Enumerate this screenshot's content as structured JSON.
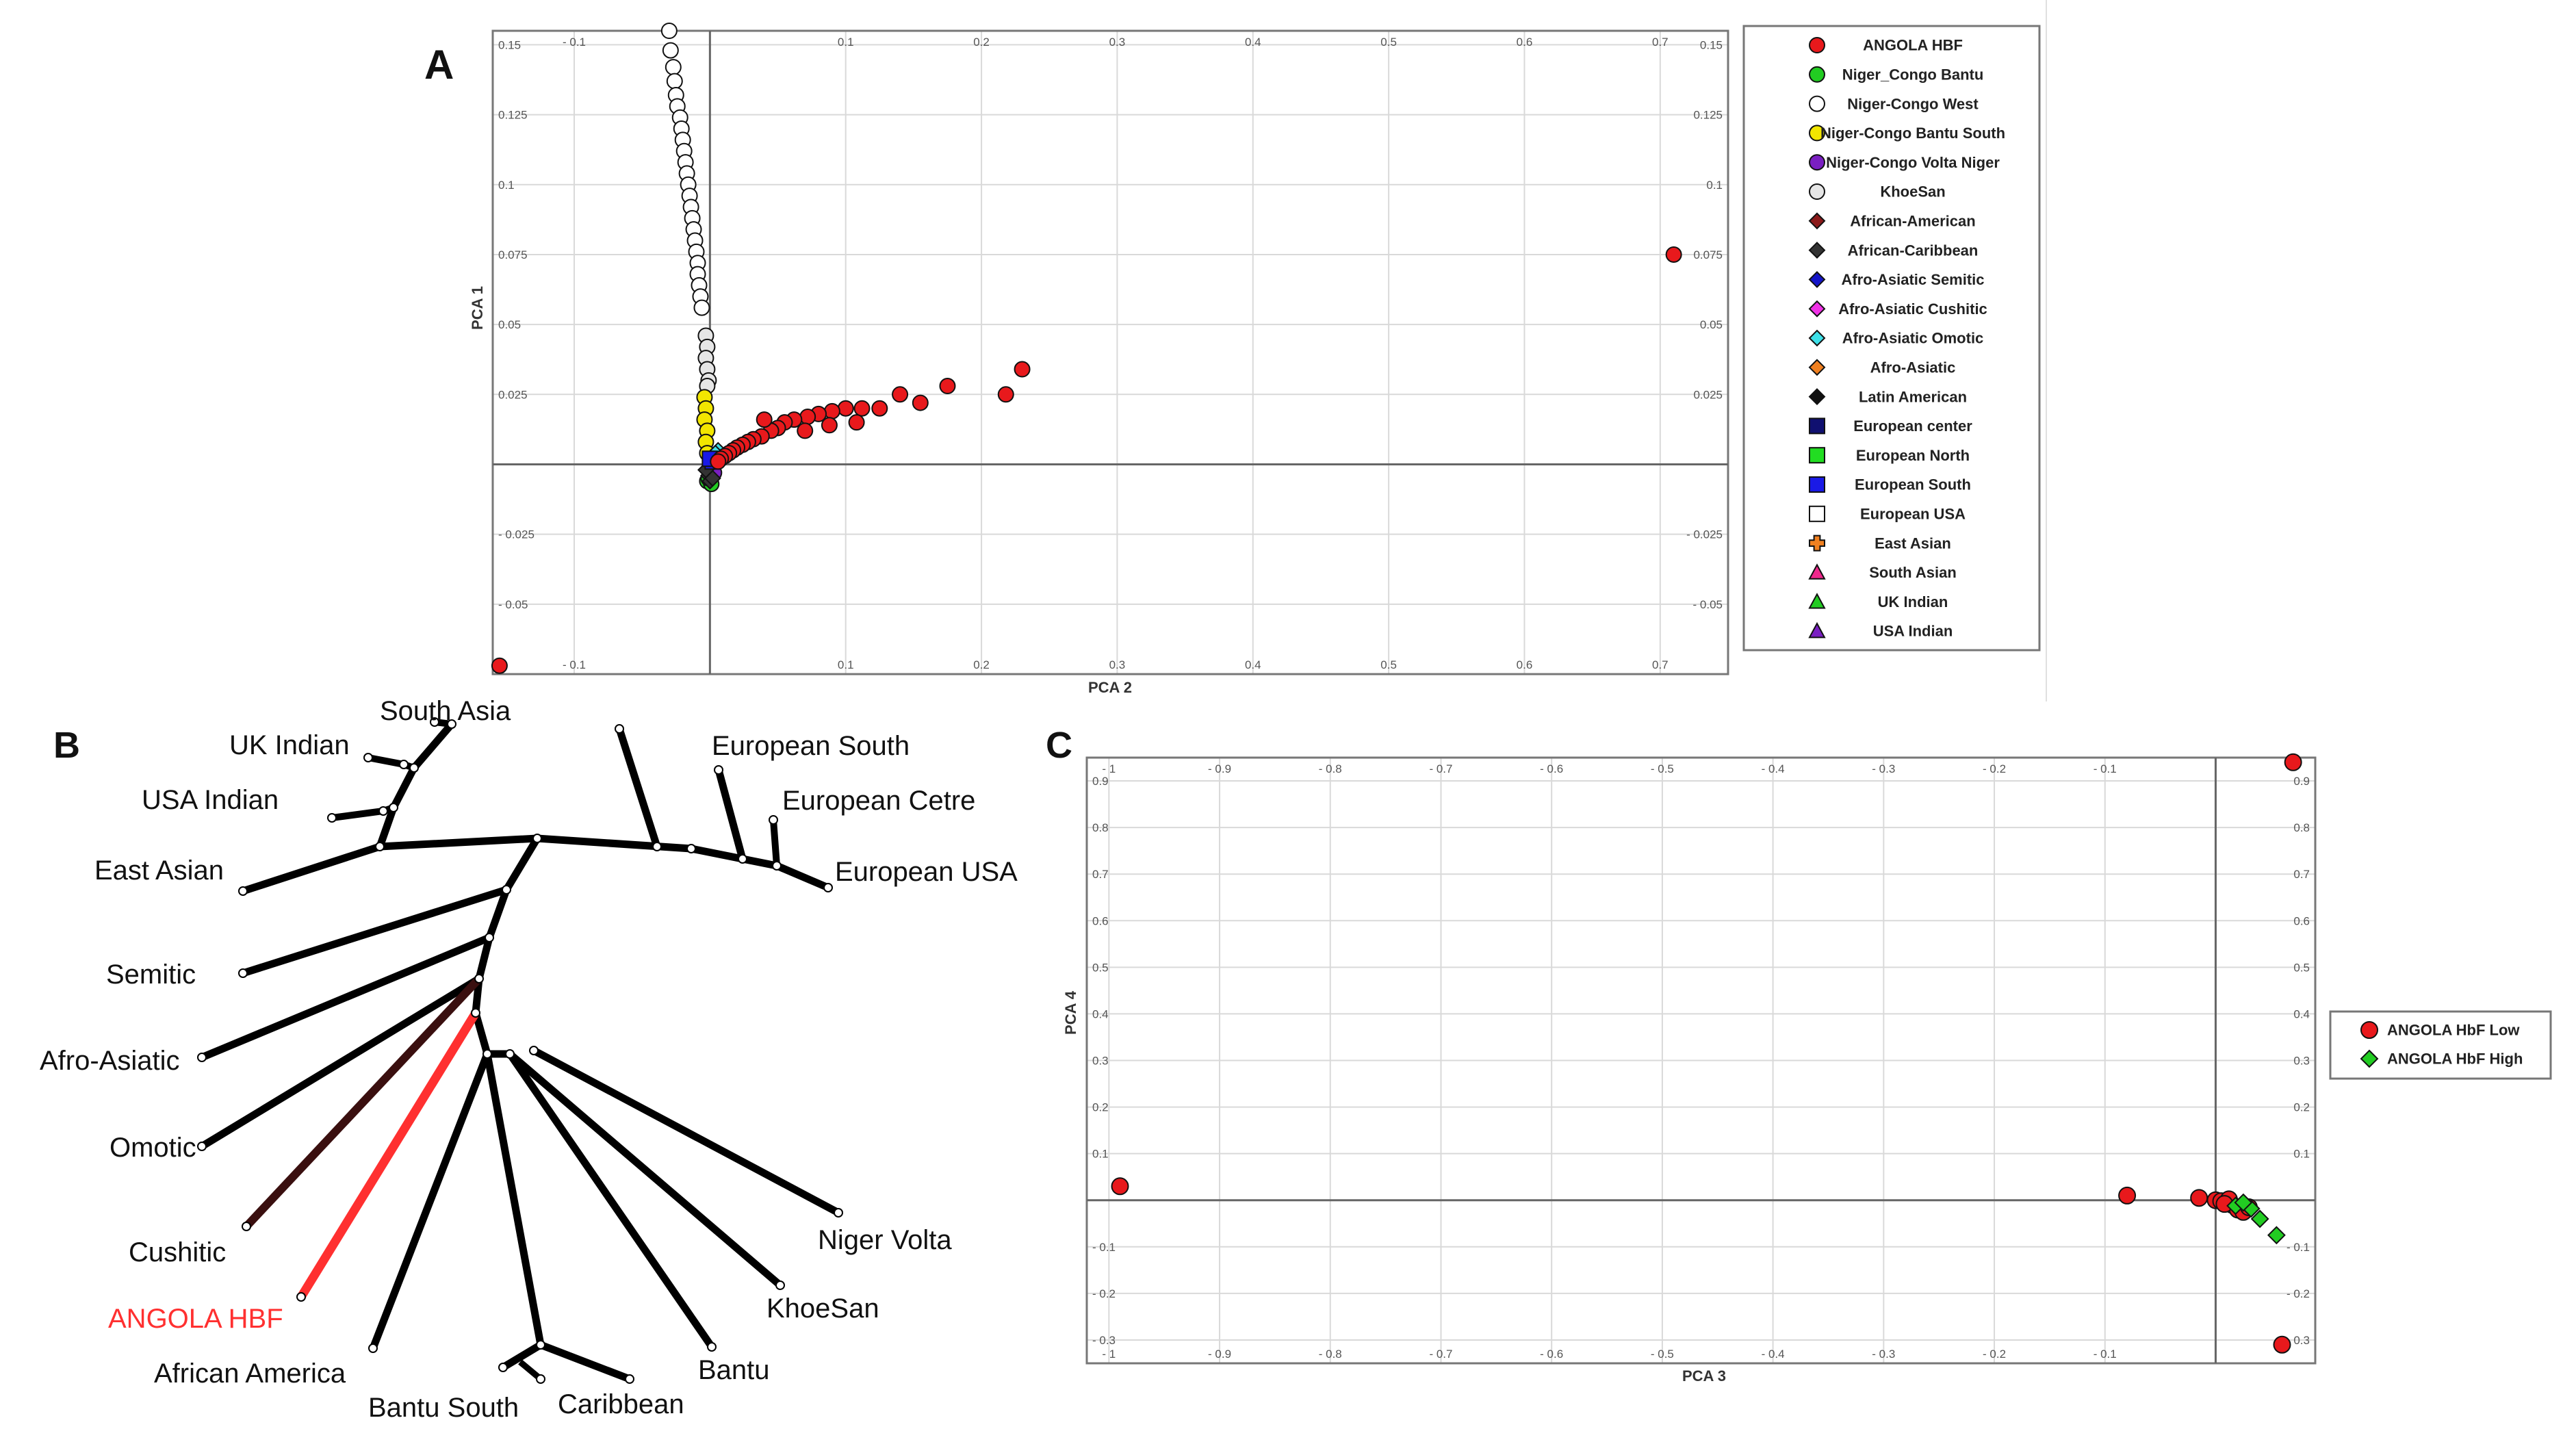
{
  "panel_labels": {
    "a": "A",
    "b": "B",
    "c": "C"
  },
  "colors": {
    "angola": "#e8191c",
    "tree_highlight": "#ff3030",
    "cushitic_branch": "#3a0f0f",
    "grid": "#d9d9d9",
    "axis": "#666666",
    "frame": "#777777"
  },
  "chart_data": [
    {
      "type": "scatter",
      "panel": "A",
      "xlabel": "PCA 2",
      "ylabel": "PCA 1",
      "xlim": [
        -0.16,
        0.75
      ],
      "ylim": [
        -0.075,
        0.155
      ],
      "x_ticks": [
        -0.1,
        0.1,
        0.2,
        0.3,
        0.4,
        0.5,
        0.6,
        0.7
      ],
      "x_tick_labels": [
        "- 0.1",
        "0.1",
        "0.2",
        "0.3",
        "0.4",
        "0.5",
        "0.6",
        "0.7"
      ],
      "y_ticks": [
        0.15,
        0.125,
        0.1,
        0.075,
        0.05,
        0.025,
        -0.025,
        -0.05
      ],
      "y_tick_labels": [
        "0.15",
        "0.125",
        "0.1",
        "0.075",
        "0.05",
        "0.025",
        "- 0.025",
        "- 0.05"
      ],
      "legend": [
        {
          "label": "ANGOLA HBF",
          "shape": "circle",
          "color": "#e8191c"
        },
        {
          "label": "Niger_Congo Bantu",
          "shape": "circle",
          "color": "#22cc22"
        },
        {
          "label": "Niger-Congo West",
          "shape": "circle",
          "color": "#ffffff"
        },
        {
          "label": "Niger-Congo Bantu South",
          "shape": "circle",
          "color": "#f2e600"
        },
        {
          "label": "Niger-Congo Volta Niger",
          "shape": "circle",
          "color": "#7a1fc2"
        },
        {
          "label": "KhoeSan",
          "shape": "circle",
          "color": "#e6e6e6"
        },
        {
          "label": "African-American",
          "shape": "diamond",
          "color": "#8b1a1a"
        },
        {
          "label": "African-Caribbean",
          "shape": "diamond",
          "color": "#333333"
        },
        {
          "label": "Afro-Asiatic Semitic",
          "shape": "diamond",
          "color": "#1515c8"
        },
        {
          "label": "Afro-Asiatic Cushitic",
          "shape": "diamond",
          "color": "#f032e6"
        },
        {
          "label": "Afro-Asiatic Omotic",
          "shape": "diamond",
          "color": "#3de0e8"
        },
        {
          "label": "Afro-Asiatic",
          "shape": "diamond",
          "color": "#f08020"
        },
        {
          "label": "Latin American",
          "shape": "diamond",
          "color": "#111111"
        },
        {
          "label": "European center",
          "shape": "square",
          "color": "#101070"
        },
        {
          "label": "European North",
          "shape": "square",
          "color": "#22dd22"
        },
        {
          "label": "European South",
          "shape": "square",
          "color": "#1a1ae6"
        },
        {
          "label": "European USA",
          "shape": "square",
          "color": "#ffffff"
        },
        {
          "label": "East Asian",
          "shape": "plus",
          "color": "#f08020"
        },
        {
          "label": "South Asian",
          "shape": "triangle",
          "color": "#f0288c"
        },
        {
          "label": "UK Indian",
          "shape": "triangle",
          "color": "#22cc22"
        },
        {
          "label": "USA Indian",
          "shape": "triangle",
          "color": "#7a1fc2"
        }
      ],
      "series": [
        {
          "name": "Niger-Congo West",
          "color": "#ffffff",
          "shape": "circle",
          "points": [
            [
              -0.03,
              0.155
            ],
            [
              -0.029,
              0.148
            ],
            [
              -0.027,
              0.142
            ],
            [
              -0.026,
              0.137
            ],
            [
              -0.025,
              0.132
            ],
            [
              -0.024,
              0.128
            ],
            [
              -0.022,
              0.124
            ],
            [
              -0.021,
              0.12
            ],
            [
              -0.02,
              0.116
            ],
            [
              -0.019,
              0.112
            ],
            [
              -0.018,
              0.108
            ],
            [
              -0.017,
              0.104
            ],
            [
              -0.016,
              0.1
            ],
            [
              -0.015,
              0.096
            ],
            [
              -0.014,
              0.092
            ],
            [
              -0.013,
              0.088
            ],
            [
              -0.012,
              0.084
            ],
            [
              -0.011,
              0.08
            ],
            [
              -0.01,
              0.076
            ],
            [
              -0.009,
              0.072
            ],
            [
              -0.009,
              0.068
            ],
            [
              -0.008,
              0.064
            ],
            [
              -0.007,
              0.06
            ],
            [
              -0.006,
              0.056
            ]
          ]
        },
        {
          "name": "KhoeSan",
          "color": "#e6e6e6",
          "shape": "circle",
          "points": [
            [
              -0.003,
              0.046
            ],
            [
              -0.002,
              0.042
            ],
            [
              -0.003,
              0.038
            ],
            [
              -0.002,
              0.034
            ],
            [
              -0.001,
              0.03
            ],
            [
              -0.002,
              0.028
            ]
          ]
        },
        {
          "name": "Niger-Congo Bantu South",
          "color": "#f2e600",
          "shape": "circle",
          "points": [
            [
              -0.004,
              0.024
            ],
            [
              -0.003,
              0.02
            ],
            [
              -0.004,
              0.016
            ],
            [
              -0.002,
              0.012
            ],
            [
              -0.003,
              0.008
            ],
            [
              -0.002,
              0.004
            ]
          ]
        },
        {
          "name": "Niger_Congo Bantu",
          "color": "#22cc22",
          "shape": "circle",
          "points": [
            [
              -0.002,
              -0.006
            ],
            [
              0.001,
              -0.007
            ],
            [
              -0.001,
              -0.005
            ]
          ]
        },
        {
          "name": "Niger-Congo Volta Niger",
          "color": "#7a1fc2",
          "shape": "circle",
          "points": [
            [
              0.001,
              -0.002
            ],
            [
              0.003,
              -0.003
            ]
          ]
        },
        {
          "name": "Afro-Asiatic Omotic",
          "color": "#3de0e8",
          "shape": "diamond",
          "points": [
            [
              0.006,
              0.005
            ],
            [
              0.004,
              0.004
            ]
          ]
        },
        {
          "name": "African-Caribbean",
          "color": "#333333",
          "shape": "diamond",
          "points": [
            [
              -0.001,
              -0.004
            ],
            [
              0.0,
              -0.006
            ],
            [
              0.002,
              -0.005
            ],
            [
              -0.003,
              -0.002
            ]
          ]
        },
        {
          "name": "European South",
          "color": "#1a1ae6",
          "shape": "square",
          "points": [
            [
              0.002,
              0.001
            ],
            [
              0.0,
              0.002
            ]
          ]
        },
        {
          "name": "ANGOLA HBF",
          "color": "#e8191c",
          "shape": "circle",
          "points": [
            [
              0.71,
              0.075
            ],
            [
              -0.155,
              -0.072
            ],
            [
              0.23,
              0.034
            ],
            [
              0.218,
              0.025
            ],
            [
              0.175,
              0.028
            ],
            [
              0.155,
              0.022
            ],
            [
              0.14,
              0.025
            ],
            [
              0.125,
              0.02
            ],
            [
              0.112,
              0.02
            ],
            [
              0.108,
              0.015
            ],
            [
              0.1,
              0.02
            ],
            [
              0.09,
              0.019
            ],
            [
              0.088,
              0.014
            ],
            [
              0.08,
              0.018
            ],
            [
              0.072,
              0.017
            ],
            [
              0.07,
              0.012
            ],
            [
              0.062,
              0.016
            ],
            [
              0.055,
              0.015
            ],
            [
              0.05,
              0.013
            ],
            [
              0.045,
              0.012
            ],
            [
              0.038,
              0.01
            ],
            [
              0.04,
              0.016
            ],
            [
              0.032,
              0.009
            ],
            [
              0.028,
              0.008
            ],
            [
              0.024,
              0.007
            ],
            [
              0.02,
              0.006
            ],
            [
              0.017,
              0.005
            ],
            [
              0.014,
              0.004
            ],
            [
              0.011,
              0.003
            ],
            [
              0.008,
              0.002
            ],
            [
              0.006,
              0.001
            ]
          ]
        }
      ]
    },
    {
      "type": "tree",
      "panel": "B",
      "description": "unrooted population tree",
      "leaves": [
        "South Asia",
        "UK Indian",
        "USA Indian",
        "East Asian",
        "European South",
        "European Cetre",
        "European USA",
        "Semitic",
        "Afro-Asiatic",
        "Omotic",
        "Cushitic",
        "ANGOLA HBF",
        "African America",
        "Bantu South",
        "Caribbean",
        "Bantu",
        "KhoeSan",
        "Niger Volta"
      ],
      "highlight": "ANGOLA HBF"
    },
    {
      "type": "scatter",
      "panel": "C",
      "xlabel": "PCA 3",
      "ylabel": "PCA 4",
      "xlim": [
        -1.02,
        0.09
      ],
      "ylim": [
        -0.35,
        0.95
      ],
      "x_ticks": [
        -1,
        -0.9,
        -0.8,
        -0.7,
        -0.6,
        -0.5,
        -0.4,
        -0.3,
        -0.2,
        -0.1
      ],
      "x_tick_labels": [
        "- 1",
        "- 0.9",
        "- 0.8",
        "- 0.7",
        "- 0.6",
        "- 0.5",
        "- 0.4",
        "- 0.3",
        "- 0.2",
        "- 0.1"
      ],
      "y_ticks": [
        0.9,
        0.8,
        0.7,
        0.6,
        0.5,
        0.4,
        0.3,
        0.2,
        0.1,
        -0.1,
        -0.2,
        -0.3
      ],
      "y_tick_labels": [
        "0.9",
        "0.8",
        "0.7",
        "0.6",
        "0.5",
        "0.4",
        "0.3",
        "0.2",
        "0.1",
        "- 0.1",
        "- 0.2",
        "- 0.3"
      ],
      "legend": [
        {
          "label": "ANGOLA HbF Low",
          "shape": "circle",
          "color": "#e8191c"
        },
        {
          "label": "ANGOLA HbF High",
          "shape": "diamond",
          "color": "#22cc22"
        }
      ],
      "series": [
        {
          "name": "ANGOLA HbF Low",
          "color": "#e8191c",
          "shape": "circle",
          "points": [
            [
              0.07,
              0.94
            ],
            [
              0.06,
              -0.31
            ],
            [
              -0.99,
              0.03
            ],
            [
              -0.08,
              0.01
            ],
            [
              -0.015,
              0.005
            ],
            [
              0.0,
              0.0
            ],
            [
              0.005,
              -0.002
            ],
            [
              0.01,
              -0.005
            ],
            [
              0.015,
              -0.01
            ],
            [
              0.02,
              -0.02
            ],
            [
              0.025,
              -0.025
            ],
            [
              0.03,
              -0.015
            ],
            [
              0.012,
              0.002
            ],
            [
              0.008,
              -0.008
            ]
          ]
        },
        {
          "name": "ANGOLA HbF High",
          "color": "#22cc22",
          "shape": "diamond",
          "points": [
            [
              0.018,
              -0.012
            ],
            [
              0.032,
              -0.018
            ],
            [
              0.04,
              -0.04
            ],
            [
              0.055,
              -0.075
            ],
            [
              0.025,
              -0.005
            ]
          ]
        }
      ]
    }
  ]
}
